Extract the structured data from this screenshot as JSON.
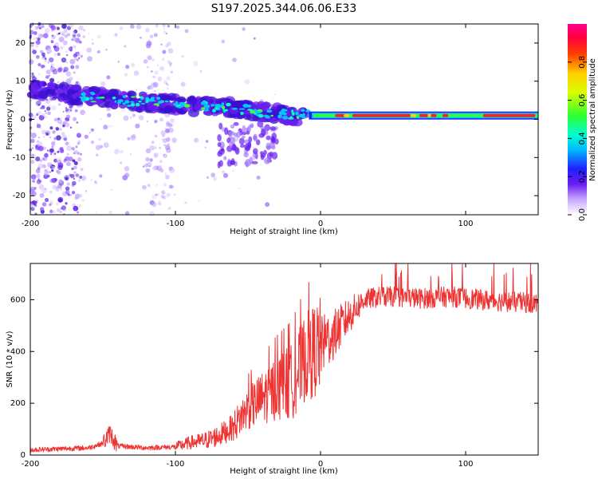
{
  "title": "S197.2025.344.06.06.E33",
  "colors": {
    "line": "#ee3333",
    "axis": "#000000",
    "background": "#ffffff"
  },
  "chart_data": [
    {
      "type": "heatmap",
      "name": "spectrogram",
      "xlabel": "Height of straight line (km)",
      "ylabel": "Frequency (Hz)",
      "xlim": [
        -200,
        150
      ],
      "ylim": [
        -25,
        25
      ],
      "xticks": [
        -200,
        -100,
        0,
        100
      ],
      "yticks": [
        -20,
        -10,
        0,
        10,
        20
      ],
      "xtick_labels": [
        "-200",
        "-100",
        "0",
        "100"
      ],
      "ytick_labels": [
        "-20",
        "-10",
        "0",
        "10",
        "20"
      ],
      "colorbar": {
        "label": "Normalized spectral amplitude",
        "range": [
          0,
          1
        ],
        "ticks": [
          "0.0",
          "0.2",
          "0.4",
          "0.6",
          "0.8"
        ],
        "tick_values": [
          0,
          0.2,
          0.4,
          0.6,
          0.8
        ]
      },
      "ridge": {
        "description": "dominant Doppler line",
        "x": [
          -200,
          -180,
          -160,
          -140,
          -120,
          -100,
          -80,
          -60,
          -40,
          -20,
          0,
          20,
          50,
          100,
          150
        ],
        "frequency": [
          8,
          7,
          6,
          5,
          4.5,
          4,
          3.5,
          3,
          2,
          1,
          1.5,
          1,
          1,
          1,
          1
        ]
      }
    },
    {
      "type": "line",
      "name": "snr",
      "xlabel": "Height of straight line (km)",
      "ylabel": "SNR (10 * v/v)",
      "xlim": [
        -200,
        150
      ],
      "ylim": [
        0,
        740
      ],
      "xticks": [
        -200,
        -100,
        0,
        100
      ],
      "yticks": [
        0,
        200,
        400,
        600
      ],
      "xtick_labels": [
        "-200",
        "-100",
        "0",
        "100"
      ],
      "ytick_labels": [
        "0",
        "200",
        "400",
        "600"
      ],
      "trend": {
        "x": [
          -200,
          -160,
          -150,
          -145,
          -140,
          -120,
          -100,
          -90,
          -80,
          -70,
          -60,
          -50,
          -40,
          -30,
          -20,
          -10,
          0,
          10,
          20,
          30,
          40,
          50,
          70,
          90,
          110,
          130,
          150
        ],
        "y": [
          20,
          28,
          45,
          85,
          35,
          28,
          32,
          48,
          55,
          75,
          110,
          180,
          220,
          260,
          280,
          380,
          420,
          470,
          540,
          600,
          610,
          612,
          605,
          612,
          600,
          592,
          585
        ]
      }
    }
  ]
}
